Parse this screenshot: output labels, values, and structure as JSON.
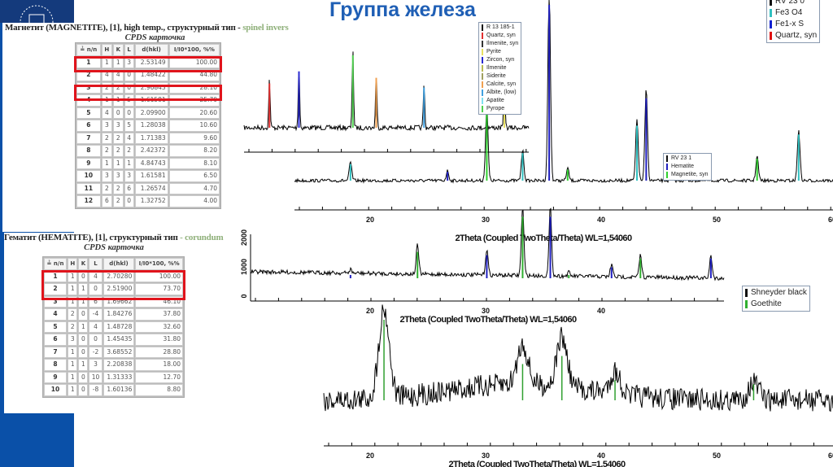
{
  "slide": {
    "title": "Группа железа",
    "brand_color": "#0a50a8",
    "title_color": "#1f5fb5"
  },
  "magnetite": {
    "caption": "Магнетит (MAGNETITE), [1], high temp., структурный тип - ",
    "structure_type": "spinel invers",
    "subtitle": "CPDS карточка",
    "columns": [
      "≟ n/n",
      "H",
      "K",
      "L",
      "d(hkl)",
      "I/I0*100, %%"
    ],
    "rows": [
      [
        "1",
        "1",
        "1",
        "3",
        "2.53149",
        "100.00"
      ],
      [
        "2",
        "4",
        "4",
        "0",
        "1.48422",
        "44.80"
      ],
      [
        "3",
        "2",
        "2",
        "0",
        "2.96843",
        "28.10"
      ],
      [
        "4",
        "1",
        "1",
        "5",
        "1.61581",
        "25.70"
      ],
      [
        "5",
        "4",
        "0",
        "0",
        "2.09900",
        "20.60"
      ],
      [
        "6",
        "3",
        "3",
        "5",
        "1.28038",
        "10.60"
      ],
      [
        "7",
        "2",
        "2",
        "4",
        "1.71383",
        "9.60"
      ],
      [
        "8",
        "2",
        "2",
        "2",
        "2.42372",
        "8.20"
      ],
      [
        "9",
        "1",
        "1",
        "1",
        "4.84743",
        "8.10"
      ],
      [
        "10",
        "3",
        "3",
        "3",
        "1.61581",
        "6.50"
      ],
      [
        "11",
        "2",
        "2",
        "6",
        "1.26574",
        "4.70"
      ],
      [
        "12",
        "6",
        "2",
        "0",
        "1.32752",
        "4.00"
      ]
    ],
    "highlighted_rows": [
      1,
      3
    ]
  },
  "hematite": {
    "caption": "Гематит (HEMATITE), [1], структурный тип ",
    "structure_type": "- corundum",
    "subtitle": "CPDS карточка",
    "columns": [
      "≟ n/n",
      "H",
      "K",
      "L",
      "d(hkl)",
      "I/I0*100, %%"
    ],
    "rows": [
      [
        "1",
        "1",
        "0",
        "4",
        "2.70280",
        "100.00"
      ],
      [
        "2",
        "1",
        "1",
        "0",
        "2.51900",
        "73.70"
      ],
      [
        "3",
        "1",
        "1",
        "6",
        "1.69662",
        "46.10"
      ],
      [
        "4",
        "2",
        "0",
        "-4",
        "1.84276",
        "37.80"
      ],
      [
        "5",
        "2",
        "1",
        "4",
        "1.48728",
        "32.60"
      ],
      [
        "6",
        "3",
        "0",
        "0",
        "1.45435",
        "31.80"
      ],
      [
        "7",
        "1",
        "0",
        "-2",
        "3.68552",
        "28.80"
      ],
      [
        "8",
        "1",
        "1",
        "3",
        "2.20838",
        "18.00"
      ],
      [
        "9",
        "1",
        "0",
        "10",
        "1.31333",
        "12.70"
      ],
      [
        "10",
        "1",
        "0",
        "-8",
        "1.60136",
        "8.80"
      ]
    ],
    "highlighted_rows": [
      1,
      2
    ]
  },
  "chart_data": [
    {
      "type": "line",
      "xlabel": "",
      "legend": [
        {
          "name": "R 13 185-1",
          "color": "#111111"
        },
        {
          "name": "Quartz, syn",
          "color": "#e23030"
        },
        {
          "name": "Ilmenite, syn",
          "color": "#333333"
        },
        {
          "name": "Pyrite",
          "color": "#e8e060"
        },
        {
          "name": "Zircon, syn",
          "color": "#2a2ad0"
        },
        {
          "name": "Ilmenite",
          "color": "#b8b850"
        },
        {
          "name": "Siderite",
          "color": "#a0a060"
        },
        {
          "name": "Calcite, syn",
          "color": "#f0a050"
        },
        {
          "name": "Albite, (low)",
          "color": "#40a0e0"
        },
        {
          "name": "Apatite",
          "color": "#80e0f0"
        },
        {
          "name": "Pyrope",
          "color": "#50d050"
        }
      ],
      "legend_position": "top-right",
      "peaks_2theta": [
        [
          10.5,
          0.55
        ],
        [
          13.4,
          0.7
        ],
        [
          18.7,
          0.9
        ],
        [
          21,
          0.62
        ],
        [
          25.7,
          0.5
        ],
        [
          33.6,
          0.55
        ]
      ]
    },
    {
      "type": "line",
      "xlabel": "2Theta (Coupled TwoTheta/Theta) WL=1,54060",
      "xticks": [
        20,
        30,
        40,
        50,
        60
      ],
      "xlim": [
        13,
        60
      ],
      "legend": [
        {
          "name": "RV 23 1",
          "color": "#111111"
        },
        {
          "name": "Hematite",
          "color": "#2020c0"
        },
        {
          "name": "Magnetite, syn",
          "color": "#30d030"
        }
      ],
      "legend_position": "top-right",
      "peaks_2theta": [
        [
          18.3,
          0.15
        ],
        [
          26.7,
          0.08
        ],
        [
          30.1,
          0.6
        ],
        [
          33.2,
          0.25
        ],
        [
          35.5,
          1.6
        ],
        [
          37.1,
          0.1
        ],
        [
          43.1,
          0.5
        ],
        [
          43.9,
          0.75
        ],
        [
          53.5,
          0.2
        ],
        [
          57.1,
          0.42
        ],
        [
          62.6,
          0.55
        ]
      ]
    },
    {
      "type": "line",
      "xlabel": "2Theta (Coupled TwoTheta/Theta) WL=1,54060",
      "xticks": [
        20,
        30,
        40
      ],
      "yticks": [
        0,
        1000,
        2000
      ],
      "xlim": [
        12,
        50
      ],
      "legend": [
        {
          "name": "Shneyder black",
          "color": "#111111"
        },
        {
          "name": "Goethite",
          "color": "#30b030"
        }
      ],
      "legend_position": "right",
      "peaks_2theta": [
        [
          18.3,
          150
        ],
        [
          24.1,
          1200
        ],
        [
          30.1,
          1050
        ],
        [
          33.2,
          2800
        ],
        [
          35.6,
          2800
        ],
        [
          37.2,
          150
        ],
        [
          40.9,
          500
        ],
        [
          43.4,
          900
        ],
        [
          49.5,
          900
        ]
      ]
    },
    {
      "type": "line",
      "xlabel": "2Theta (Coupled TwoTheta/Theta) WL=1,54060",
      "xticks": [
        20,
        30,
        40,
        50,
        60
      ],
      "xlim": [
        16,
        60
      ],
      "peaks_2theta": [
        [
          21.2,
          1.0
        ],
        [
          33.2,
          0.45
        ],
        [
          36.6,
          0.55
        ],
        [
          41.2,
          0.25
        ],
        [
          53.2,
          0.2
        ]
      ]
    }
  ]
}
